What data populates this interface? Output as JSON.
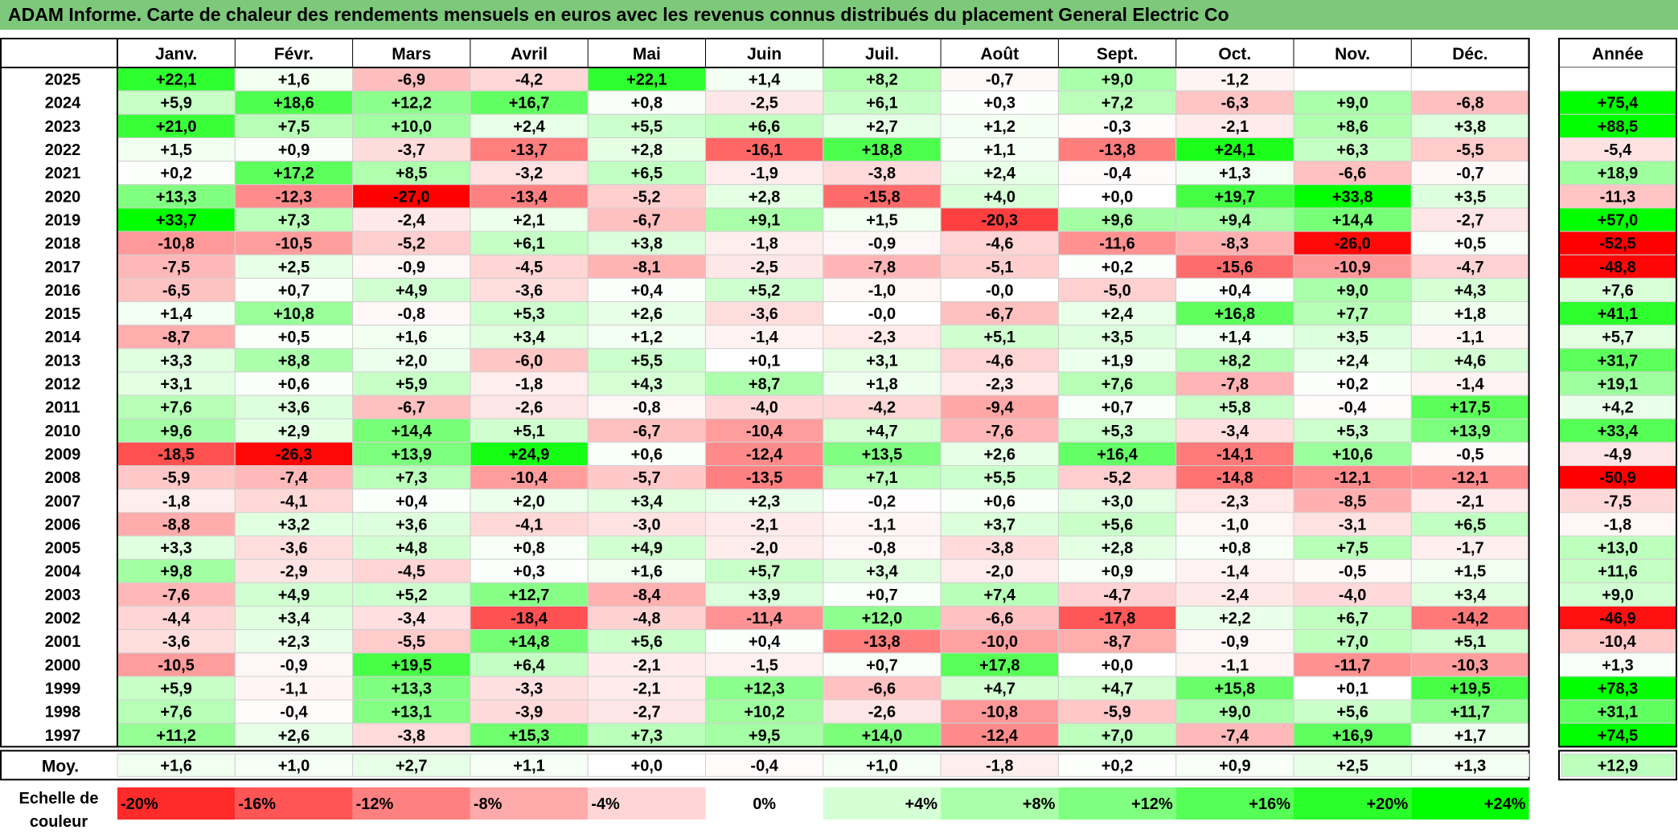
{
  "title": "ADAM Informe. Carte de chaleur des rendements mensuels en euros avec les revenus connus distribués du placement General Electric Co",
  "scale_label": "Echelle de\ncouleur",
  "colors": {
    "title_bg": "#7dc87a",
    "negative": "#ff0000",
    "positive": "#00ff00",
    "neutral": "#ffffff"
  },
  "chart_data": {
    "type": "heatmap",
    "title": "ADAM Informe. Carte de chaleur des rendements mensuels en euros avec les revenus connus distribués du placement General Electric Co",
    "columns": [
      "Janv.",
      "Févr.",
      "Mars",
      "Avril",
      "Mai",
      "Juin",
      "Juil.",
      "Août",
      "Sept.",
      "Oct.",
      "Nov.",
      "Déc."
    ],
    "year_header": "Année",
    "rows": [
      {
        "year": "2025",
        "values": [
          "+22,1",
          "+1,6",
          "-6,9",
          "-4,2",
          "+22,1",
          "+1,4",
          "+8,2",
          "-0,7",
          "+9,0",
          "-1,2",
          "",
          ""
        ],
        "annual": ""
      },
      {
        "year": "2024",
        "values": [
          "+5,9",
          "+18,6",
          "+12,2",
          "+16,7",
          "+0,8",
          "-2,5",
          "+6,1",
          "+0,3",
          "+7,2",
          "-6,3",
          "+9,0",
          "-6,8"
        ],
        "annual": "+75,4"
      },
      {
        "year": "2023",
        "values": [
          "+21,0",
          "+7,5",
          "+10,0",
          "+2,4",
          "+5,5",
          "+6,6",
          "+2,7",
          "+1,2",
          "-0,3",
          "-2,1",
          "+8,6",
          "+3,8"
        ],
        "annual": "+88,5"
      },
      {
        "year": "2022",
        "values": [
          "+1,5",
          "+0,9",
          "-3,7",
          "-13,7",
          "+2,8",
          "-16,1",
          "+18,8",
          "+1,1",
          "-13,8",
          "+24,1",
          "+6,3",
          "-5,5"
        ],
        "annual": "-5,4"
      },
      {
        "year": "2021",
        "values": [
          "+0,2",
          "+17,2",
          "+8,5",
          "-3,2",
          "+6,5",
          "-1,9",
          "-3,8",
          "+2,4",
          "-0,4",
          "+1,3",
          "-6,6",
          "-0,7"
        ],
        "annual": "+18,9"
      },
      {
        "year": "2020",
        "values": [
          "+13,3",
          "-12,3",
          "-27,0",
          "-13,4",
          "-5,2",
          "+2,8",
          "-15,8",
          "+4,0",
          "+0,0",
          "+19,7",
          "+33,8",
          "+3,5"
        ],
        "annual": "-11,3"
      },
      {
        "year": "2019",
        "values": [
          "+33,7",
          "+7,3",
          "-2,4",
          "+2,1",
          "-6,7",
          "+9,1",
          "+1,5",
          "-20,3",
          "+9,6",
          "+9,4",
          "+14,4",
          "-2,7"
        ],
        "annual": "+57,0"
      },
      {
        "year": "2018",
        "values": [
          "-10,8",
          "-10,5",
          "-5,2",
          "+6,1",
          "+3,8",
          "-1,8",
          "-0,9",
          "-4,6",
          "-11,6",
          "-8,3",
          "-26,0",
          "+0,5"
        ],
        "annual": "-52,5"
      },
      {
        "year": "2017",
        "values": [
          "-7,5",
          "+2,5",
          "-0,9",
          "-4,5",
          "-8,1",
          "-2,5",
          "-7,8",
          "-5,1",
          "+0,2",
          "-15,6",
          "-10,9",
          "-4,7"
        ],
        "annual": "-48,8"
      },
      {
        "year": "2016",
        "values": [
          "-6,5",
          "+0,7",
          "+4,9",
          "-3,6",
          "+0,4",
          "+5,2",
          "-1,0",
          "-0,0",
          "-5,0",
          "+0,4",
          "+9,0",
          "+4,3"
        ],
        "annual": "+7,6"
      },
      {
        "year": "2015",
        "values": [
          "+1,4",
          "+10,8",
          "-0,8",
          "+5,3",
          "+2,6",
          "-3,6",
          "-0,0",
          "-6,7",
          "+2,4",
          "+16,8",
          "+7,7",
          "+1,8"
        ],
        "annual": "+41,1"
      },
      {
        "year": "2014",
        "values": [
          "-8,7",
          "+0,5",
          "+1,6",
          "+3,4",
          "+1,2",
          "-1,4",
          "-2,3",
          "+5,1",
          "+3,5",
          "+1,4",
          "+3,5",
          "-1,1"
        ],
        "annual": "+5,7"
      },
      {
        "year": "2013",
        "values": [
          "+3,3",
          "+8,8",
          "+2,0",
          "-6,0",
          "+5,5",
          "+0,1",
          "+3,1",
          "-4,6",
          "+1,9",
          "+8,2",
          "+2,4",
          "+4,6"
        ],
        "annual": "+31,7"
      },
      {
        "year": "2012",
        "values": [
          "+3,1",
          "+0,6",
          "+5,9",
          "-1,8",
          "+4,3",
          "+8,7",
          "+1,8",
          "-2,3",
          "+7,6",
          "-7,8",
          "+0,2",
          "-1,4"
        ],
        "annual": "+19,1"
      },
      {
        "year": "2011",
        "values": [
          "+7,6",
          "+3,6",
          "-6,7",
          "-2,6",
          "-0,8",
          "-4,0",
          "-4,2",
          "-9,4",
          "+0,7",
          "+5,8",
          "-0,4",
          "+17,5"
        ],
        "annual": "+4,2"
      },
      {
        "year": "2010",
        "values": [
          "+9,6",
          "+2,9",
          "+14,4",
          "+5,1",
          "-6,7",
          "-10,4",
          "+4,7",
          "-7,6",
          "+5,3",
          "-3,4",
          "+5,3",
          "+13,9"
        ],
        "annual": "+33,4"
      },
      {
        "year": "2009",
        "values": [
          "-18,5",
          "-26,3",
          "+13,9",
          "+24,9",
          "+0,6",
          "-12,4",
          "+13,5",
          "+2,6",
          "+16,4",
          "-14,1",
          "+10,6",
          "-0,5"
        ],
        "annual": "-4,9"
      },
      {
        "year": "2008",
        "values": [
          "-5,9",
          "-7,4",
          "+7,3",
          "-10,4",
          "-5,7",
          "-13,5",
          "+7,1",
          "+5,5",
          "-5,2",
          "-14,8",
          "-12,1",
          "-12,1"
        ],
        "annual": "-50,9"
      },
      {
        "year": "2007",
        "values": [
          "-1,8",
          "-4,1",
          "+0,4",
          "+2,0",
          "+3,4",
          "+2,3",
          "-0,2",
          "+0,6",
          "+3,0",
          "-2,3",
          "-8,5",
          "-2,1"
        ],
        "annual": "-7,5"
      },
      {
        "year": "2006",
        "values": [
          "-8,8",
          "+3,2",
          "+3,6",
          "-4,1",
          "-3,0",
          "-2,1",
          "-1,1",
          "+3,7",
          "+5,6",
          "-1,0",
          "-3,1",
          "+6,5"
        ],
        "annual": "-1,8"
      },
      {
        "year": "2005",
        "values": [
          "+3,3",
          "-3,6",
          "+4,8",
          "+0,8",
          "+4,9",
          "-2,0",
          "-0,8",
          "-3,8",
          "+2,8",
          "+0,8",
          "+7,5",
          "-1,7"
        ],
        "annual": "+13,0"
      },
      {
        "year": "2004",
        "values": [
          "+9,8",
          "-2,9",
          "-4,5",
          "+0,3",
          "+1,6",
          "+5,7",
          "+3,4",
          "-2,0",
          "+0,9",
          "-1,4",
          "-0,5",
          "+1,5"
        ],
        "annual": "+11,6"
      },
      {
        "year": "2003",
        "values": [
          "-7,6",
          "+4,9",
          "+5,2",
          "+12,7",
          "-8,4",
          "+3,9",
          "+0,7",
          "+7,4",
          "-4,7",
          "-2,4",
          "-4,0",
          "+3,4"
        ],
        "annual": "+9,0"
      },
      {
        "year": "2002",
        "values": [
          "-4,4",
          "+3,4",
          "-3,4",
          "-18,4",
          "-4,8",
          "-11,4",
          "+12,0",
          "-6,6",
          "-17,8",
          "+2,2",
          "+6,7",
          "-14,2"
        ],
        "annual": "-46,9"
      },
      {
        "year": "2001",
        "values": [
          "-3,6",
          "+2,3",
          "-5,5",
          "+14,8",
          "+5,6",
          "+0,4",
          "-13,8",
          "-10,0",
          "-8,7",
          "-0,9",
          "+7,0",
          "+5,1"
        ],
        "annual": "-10,4"
      },
      {
        "year": "2000",
        "values": [
          "-10,5",
          "-0,9",
          "+19,5",
          "+6,4",
          "-2,1",
          "-1,5",
          "+0,7",
          "+17,8",
          "+0,0",
          "-1,1",
          "-11,7",
          "-10,3"
        ],
        "annual": "+1,3"
      },
      {
        "year": "1999",
        "values": [
          "+5,9",
          "-1,1",
          "+13,3",
          "-3,3",
          "-2,1",
          "+12,3",
          "-6,6",
          "+4,7",
          "+4,7",
          "+15,8",
          "+0,1",
          "+19,5"
        ],
        "annual": "+78,3"
      },
      {
        "year": "1998",
        "values": [
          "+7,6",
          "-0,4",
          "+13,1",
          "-3,9",
          "-2,7",
          "+10,2",
          "-2,6",
          "-10,8",
          "-5,9",
          "+9,0",
          "+5,6",
          "+11,7"
        ],
        "annual": "+31,1"
      },
      {
        "year": "1997",
        "values": [
          "+11,2",
          "+2,6",
          "-3,8",
          "+15,3",
          "+7,3",
          "+9,5",
          "+14,0",
          "-12,4",
          "+7,0",
          "-7,4",
          "+16,9",
          "+1,7"
        ],
        "annual": "+74,5"
      }
    ],
    "average": {
      "label": "Moy.",
      "values": [
        "+1,6",
        "+1,0",
        "+2,7",
        "+1,1",
        "+0,0",
        "-0,4",
        "+1,0",
        "-1,8",
        "+0,2",
        "+0,9",
        "+2,5",
        "+1,3"
      ],
      "annual": "+12,9"
    },
    "scale": [
      {
        "label": "-20%",
        "value": -20
      },
      {
        "label": "-16%",
        "value": -16
      },
      {
        "label": "-12%",
        "value": -12
      },
      {
        "label": "-8%",
        "value": -8
      },
      {
        "label": "-4%",
        "value": -4
      },
      {
        "label": "0%",
        "value": 0
      },
      {
        "label": "+4%",
        "value": 4
      },
      {
        "label": "+8%",
        "value": 8
      },
      {
        "label": "+12%",
        "value": 12
      },
      {
        "label": "+16%",
        "value": 16
      },
      {
        "label": "+20%",
        "value": 20
      },
      {
        "label": "+24%",
        "value": 24
      }
    ]
  }
}
